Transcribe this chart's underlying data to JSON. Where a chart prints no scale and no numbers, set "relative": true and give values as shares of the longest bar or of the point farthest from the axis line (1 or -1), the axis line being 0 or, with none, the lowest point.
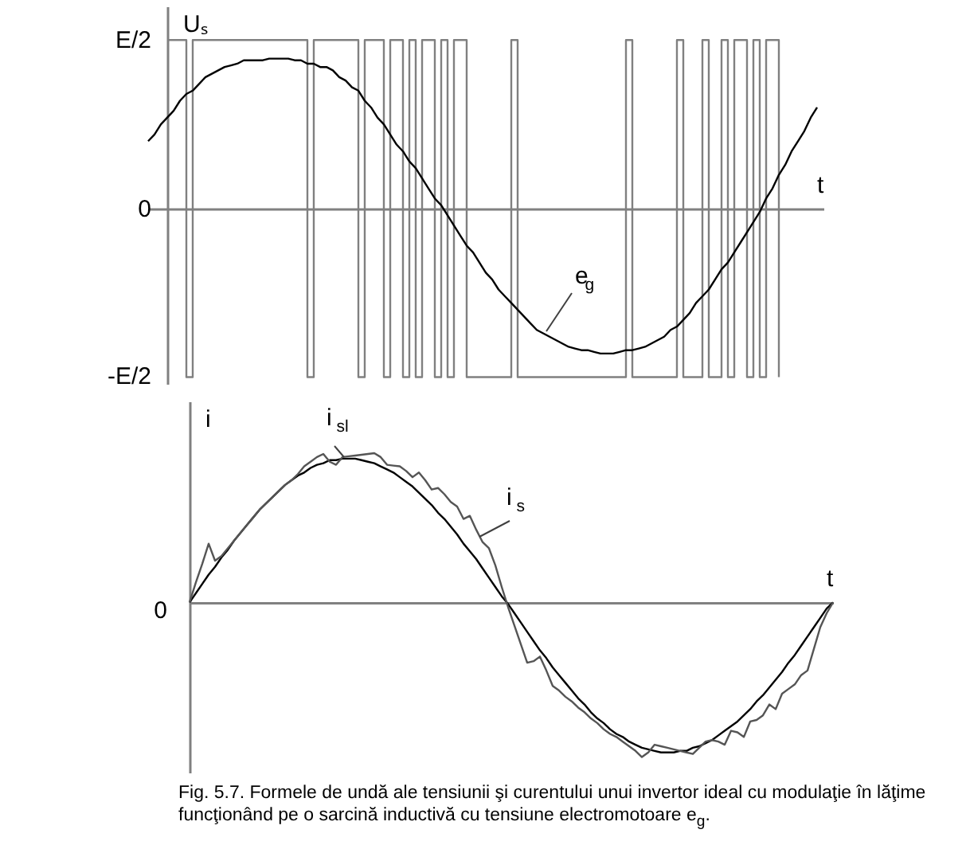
{
  "chart_data": [
    {
      "type": "step",
      "categories": [
        null,
        null,
        null,
        null,
        null,
        null,
        null,
        null,
        null,
        null,
        null,
        null,
        null,
        null,
        null,
        null,
        null,
        null,
        null,
        null,
        null,
        null,
        null,
        null,
        null,
        null,
        null,
        null,
        null,
        null,
        null,
        null,
        null,
        null,
        null,
        null,
        null,
        null,
        null,
        null,
        null,
        null,
        null,
        null,
        null,
        null,
        null,
        null,
        null,
        null,
        null,
        null,
        null,
        null,
        null,
        null,
        null,
        null,
        null,
        null,
        null,
        null,
        null,
        null,
        null,
        null,
        null,
        null,
        null,
        null,
        null,
        null,
        null,
        null,
        null,
        null,
        null,
        null,
        null,
        null,
        null,
        null,
        null,
        null,
        null,
        null,
        null,
        null,
        null,
        null,
        null,
        null,
        null,
        null,
        null,
        null,
        null,
        null,
        null,
        null,
        null,
        null,
        null,
        null,
        null,
        null,
        null
      ],
      "relative": true,
      "xlabel": "t",
      "ylabel": "Uₛ",
      "grid": false,
      "legend": false,
      "marker": "none",
      "series": [
        {
          "color": "#808080",
          "values": [
            null,
            null,
            null,
            1,
            1,
            1,
            -1,
            1,
            1,
            1,
            1,
            1,
            1,
            1,
            1,
            1,
            1,
            1,
            1,
            1,
            1,
            1,
            1,
            1,
            1,
            -1,
            1,
            1,
            1,
            1,
            1,
            1,
            1,
            -1,
            1,
            1,
            1,
            -1,
            1,
            1,
            -1,
            1,
            -1,
            1,
            1,
            -1,
            1,
            -1,
            1,
            1,
            -1,
            -1,
            -1,
            -1,
            -1,
            -1,
            -1,
            1,
            -1,
            -1,
            -1,
            -1,
            -1,
            -1,
            -1,
            -1,
            -1,
            -1,
            -1,
            -1,
            -1,
            -1,
            -1,
            -1,
            -1,
            1,
            -1,
            -1,
            -1,
            -1,
            -1,
            -1,
            -1,
            1,
            -1,
            -1,
            -1,
            1,
            -1,
            -1,
            1,
            -1,
            1,
            1,
            -1,
            1,
            -1,
            1,
            1,
            -1,
            null,
            null,
            null,
            null,
            null,
            null,
            null
          ]
        },
        {
          "type": "line",
          "color": "#000000",
          "values": [
            0.4,
            0.44,
            0.5,
            0.54,
            0.58,
            0.64,
            0.68,
            0.7,
            0.74,
            0.78,
            0.8,
            0.82,
            0.84,
            0.85,
            0.86,
            0.88,
            0.88,
            0.88,
            0.88,
            0.89,
            0.89,
            0.89,
            0.89,
            0.88,
            0.88,
            0.86,
            0.86,
            0.84,
            0.84,
            0.82,
            0.78,
            0.76,
            0.72,
            0.7,
            0.64,
            0.6,
            0.54,
            0.5,
            0.44,
            0.38,
            0.34,
            0.28,
            0.24,
            0.18,
            0.12,
            0.06,
            0.02,
            -0.04,
            -0.1,
            -0.16,
            -0.22,
            -0.26,
            -0.32,
            -0.38,
            -0.42,
            -0.48,
            -0.52,
            -0.56,
            -0.6,
            -0.64,
            -0.68,
            -0.72,
            -0.74,
            -0.76,
            -0.78,
            -0.8,
            -0.82,
            -0.83,
            -0.84,
            -0.84,
            -0.85,
            -0.86,
            -0.86,
            -0.86,
            -0.85,
            -0.84,
            -0.84,
            -0.83,
            -0.82,
            -0.8,
            -0.78,
            -0.76,
            -0.72,
            -0.7,
            -0.66,
            -0.62,
            -0.56,
            -0.52,
            -0.48,
            -0.42,
            -0.36,
            -0.32,
            -0.26,
            -0.2,
            -0.14,
            -0.08,
            -0.02,
            0.06,
            0.12,
            0.2,
            0.26,
            0.34,
            0.4,
            0.46,
            0.54,
            0.6,
            null
          ]
        }
      ],
      "annotations": [
        "E/2",
        "0",
        "-E/2",
        "e$_{g}$"
      ]
    },
    {
      "type": "line",
      "relative": true,
      "categories": [
        null,
        null,
        null,
        null,
        null,
        null,
        null,
        null,
        null,
        null,
        null,
        null,
        null,
        null,
        null,
        null,
        null,
        null,
        null,
        null,
        null,
        null,
        null,
        null,
        null,
        null,
        null,
        null,
        null,
        null,
        null,
        null,
        null,
        null,
        null,
        null,
        null,
        null,
        null,
        null,
        null,
        null,
        null,
        null,
        null,
        null,
        null,
        null,
        null,
        null,
        null,
        null,
        null,
        null,
        null,
        null,
        null,
        null,
        null,
        null,
        null,
        null,
        null,
        null,
        null,
        null,
        null,
        null,
        null,
        null,
        null,
        null,
        null,
        null,
        null,
        null,
        null,
        null,
        null,
        null,
        null,
        null,
        null,
        null,
        null,
        null,
        null,
        null,
        null,
        null,
        null,
        null,
        null,
        null,
        null,
        null,
        null,
        null,
        null,
        null,
        null,
        null
      ],
      "xlabel": "t",
      "ylabel": "i",
      "grid": false,
      "legend": false,
      "marker": "none",
      "series": [
        {
          "color": "#000000",
          "values": [
            0,
            0.06,
            0.12,
            0.18,
            0.23,
            0.29,
            0.34,
            0.4,
            0.45,
            0.5,
            0.55,
            0.6,
            0.64,
            0.68,
            0.72,
            0.76,
            0.79,
            0.82,
            0.84,
            0.87,
            0.89,
            0.9,
            0.92,
            0.92,
            0.93,
            0.93,
            0.93,
            0.92,
            0.91,
            0.9,
            0.88,
            0.86,
            0.84,
            0.81,
            0.78,
            0.75,
            0.71,
            0.67,
            0.63,
            0.58,
            0.54,
            0.49,
            0.44,
            0.38,
            0.33,
            0.28,
            0.22,
            0.16,
            0.1,
            0.04,
            -0.01,
            -0.07,
            -0.13,
            -0.19,
            -0.25,
            -0.31,
            -0.36,
            -0.42,
            -0.47,
            -0.52,
            -0.57,
            -0.62,
            -0.66,
            -0.71,
            -0.75,
            -0.78,
            -0.82,
            -0.85,
            -0.87,
            -0.9,
            -0.92,
            -0.94,
            -0.95,
            -0.96,
            -0.97,
            -0.97,
            -0.97,
            -0.96,
            -0.96,
            -0.94,
            -0.93,
            -0.91,
            -0.89,
            -0.86,
            -0.83,
            -0.8,
            -0.77,
            -0.73,
            -0.69,
            -0.64,
            -0.6,
            -0.55,
            -0.5,
            -0.45,
            -0.39,
            -0.34,
            -0.28,
            -0.22,
            -0.16,
            -0.1,
            -0.04,
            0
          ]
        },
        {
          "color": "#555555",
          "values": [
            0,
            0.13,
            0.25,
            0.38,
            0.27,
            0.3,
            0.35,
            0.4,
            0.45,
            0.5,
            0.55,
            0.6,
            0.64,
            0.68,
            0.72,
            0.76,
            0.79,
            0.83,
            0.88,
            0.91,
            0.94,
            0.96,
            0.91,
            0.89,
            0.94,
            0.945,
            0.95,
            0.955,
            0.96,
            0.965,
            0.94,
            0.89,
            0.885,
            0.88,
            0.85,
            0.81,
            0.84,
            0.79,
            0.73,
            0.74,
            0.7,
            0.65,
            0.62,
            0.54,
            0.56,
            0.47,
            0.39,
            0.35,
            0.24,
            0.1,
            -0.03,
            -0.15,
            -0.27,
            -0.39,
            -0.38,
            -0.35,
            -0.44,
            -0.54,
            -0.57,
            -0.61,
            -0.64,
            -0.68,
            -0.71,
            -0.75,
            -0.78,
            -0.82,
            -0.85,
            -0.87,
            -0.9,
            -0.93,
            -0.96,
            -1,
            -0.97,
            -0.92,
            -0.93,
            -0.94,
            -0.95,
            -0.96,
            -0.97,
            -0.98,
            -0.94,
            -0.9,
            -0.89,
            -0.9,
            -0.92,
            -0.83,
            -0.84,
            -0.87,
            -0.77,
            -0.76,
            -0.73,
            -0.66,
            -0.69,
            -0.59,
            -0.56,
            -0.53,
            -0.47,
            -0.44,
            -0.3,
            -0.16,
            -0.07,
            0
          ]
        }
      ],
      "annotations": [
        "i$_{sl}$",
        "i$_{s}$",
        "0",
        "Fig. 5.7. Formele de undă ale tensiunii şi curentului unui invertor ideal cu modulaţie în lăţime funcţionând pe o sarcină inductivă cu tensiune electromotoare e$_{g}$."
      ]
    }
  ]
}
